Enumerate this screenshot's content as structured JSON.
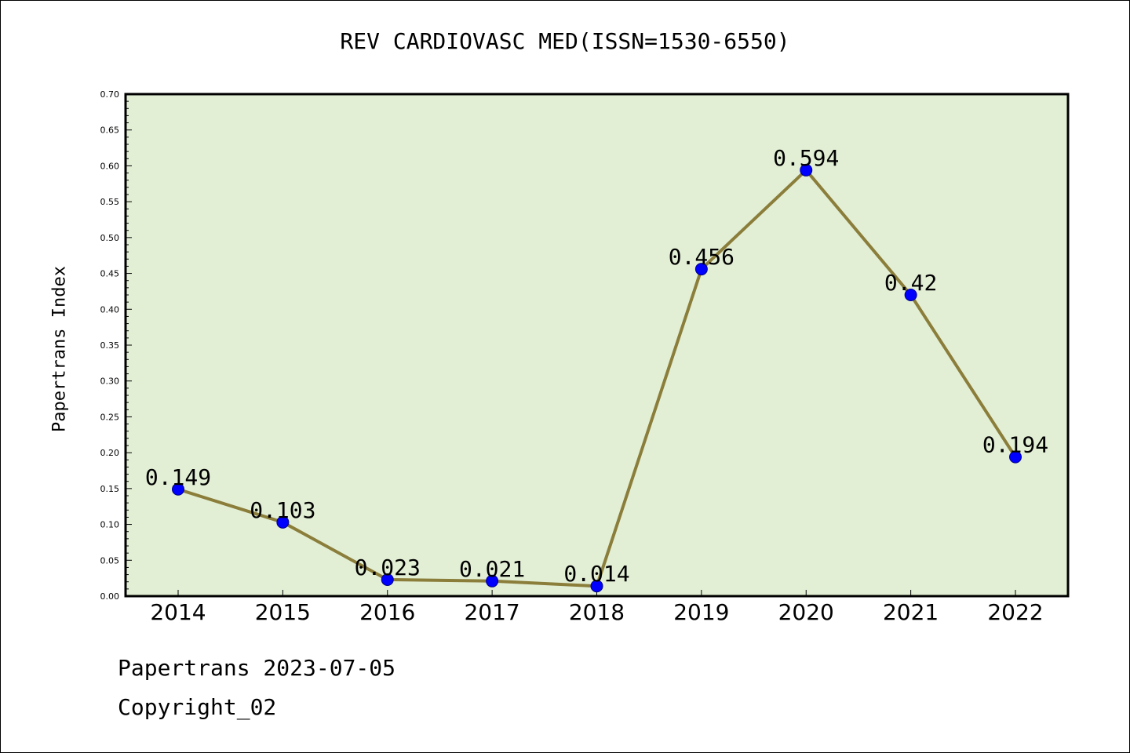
{
  "chart_data": {
    "type": "line",
    "title": "REV CARDIOVASC MED(ISSN=1530-6550)",
    "xlabel": "",
    "ylabel": "Papertrans Index",
    "x": [
      "2014",
      "2015",
      "2016",
      "2017",
      "2018",
      "2019",
      "2020",
      "2021",
      "2022"
    ],
    "series": [
      {
        "values": [
          0.149,
          0.103,
          0.023,
          0.021,
          0.014,
          0.456,
          0.594,
          0.42,
          0.194
        ],
        "data_labels": [
          "0.149",
          "0.103",
          "0.023",
          "0.021",
          "0.014",
          "0.456",
          "0.594",
          "0.42",
          "0.194"
        ]
      }
    ],
    "ylim": [
      0,
      0.7
    ],
    "y_ticks": [
      "0.00",
      "0.05",
      "0.10",
      "0.15",
      "0.20",
      "0.25",
      "0.30",
      "0.35",
      "0.40",
      "0.45",
      "0.50",
      "0.55",
      "0.60",
      "0.65",
      "0.70"
    ],
    "grid": false,
    "colors": {
      "line": "#8B7D3A",
      "marker": "#0000FF",
      "plot_background": "#E2EFD5"
    }
  },
  "footer": {
    "line1": "Papertrans 2023-07-05",
    "line2": "Copyright_02"
  }
}
